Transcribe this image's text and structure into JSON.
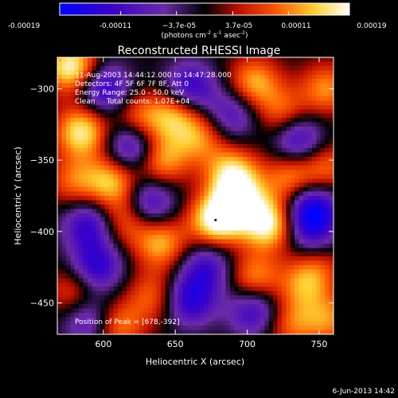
{
  "chart_data": {
    "type": "heatmap",
    "title": "Reconstructed RHESSI Image",
    "xlabel": "Heliocentric X (arcsec)",
    "ylabel": "Heliocentric Y (arcsec)",
    "xlim": [
      568,
      760
    ],
    "ylim": [
      -472,
      -278
    ],
    "xticks": [
      600,
      650,
      700,
      750
    ],
    "yticks": [
      -300,
      -350,
      -400,
      -450
    ],
    "colorbar": {
      "ticks": [
        "-0.00019",
        "-0.00011",
        "−3.7e-05",
        "3.7e-05",
        "0.00011",
        "0.00019"
      ],
      "tick_values": [
        -0.00019,
        -0.00011,
        -3.7e-05,
        3.7e-05,
        0.00011,
        0.00019
      ],
      "range": [
        -0.00019,
        0.00019
      ],
      "units_base": "(photons cm",
      "units_exp1": "-2",
      "units_mid": " s",
      "units_exp2": "-1",
      "units_mid2": " asec",
      "units_exp3": "-2",
      "units_end": ")",
      "colormap": [
        "#0000ff",
        "#3a00c8",
        "#6b2aa8",
        "#000000",
        "#c01000",
        "#ff5a00",
        "#ffd030",
        "#ffffff"
      ]
    },
    "annotations": {
      "line1": "11-Aug-2003 14:44:12.000 to 14:47:28.000",
      "line2": "Detectors: 4F 5F 6F 7F 8F, Att 0",
      "line3": "Energy Range: 25.0 - 50.0 keV",
      "line4": "Clean     Total counts: 1.07E+04",
      "peak": "Position of Peak = [678,-392]"
    },
    "peak": [
      678,
      -392
    ],
    "features": [
      {
        "x": 578,
        "y": -285,
        "amp": 1.0
      },
      {
        "x": 585,
        "y": -330,
        "amp": 0.9
      },
      {
        "x": 580,
        "y": -365,
        "amp": 0.5
      },
      {
        "x": 606,
        "y": -365,
        "amp": 0.75
      },
      {
        "x": 640,
        "y": -350,
        "amp": 0.7
      },
      {
        "x": 625,
        "y": -322,
        "amp": 0.6
      },
      {
        "x": 650,
        "y": -318,
        "amp": 0.7
      },
      {
        "x": 667,
        "y": -335,
        "amp": 0.55
      },
      {
        "x": 705,
        "y": -296,
        "amp": 0.7
      },
      {
        "x": 725,
        "y": -318,
        "amp": 0.55
      },
      {
        "x": 755,
        "y": -300,
        "amp": 0.6
      },
      {
        "x": 690,
        "y": -360,
        "amp": 0.85
      },
      {
        "x": 730,
        "y": -362,
        "amp": 0.6
      },
      {
        "x": 755,
        "y": -355,
        "amp": 0.5
      },
      {
        "x": 678,
        "y": -392,
        "amp": 1.0
      },
      {
        "x": 715,
        "y": -395,
        "amp": 0.95
      },
      {
        "x": 695,
        "y": -380,
        "amp": 0.8
      },
      {
        "x": 615,
        "y": -392,
        "amp": 0.55
      },
      {
        "x": 640,
        "y": -408,
        "amp": 0.7
      },
      {
        "x": 748,
        "y": -420,
        "amp": 0.5
      },
      {
        "x": 705,
        "y": -433,
        "amp": 0.65
      },
      {
        "x": 740,
        "y": -438,
        "amp": 0.55
      },
      {
        "x": 635,
        "y": -445,
        "amp": 0.5
      },
      {
        "x": 580,
        "y": -442,
        "amp": 0.5
      },
      {
        "x": 610,
        "y": -466,
        "amp": 0.6
      },
      {
        "x": 730,
        "y": -465,
        "amp": 0.5
      },
      {
        "x": 757,
        "y": -462,
        "amp": 0.55
      },
      {
        "x": 600,
        "y": -300,
        "amp": -0.75
      },
      {
        "x": 620,
        "y": -340,
        "amp": -0.85
      },
      {
        "x": 632,
        "y": -380,
        "amp": -0.7
      },
      {
        "x": 590,
        "y": -395,
        "amp": -0.7
      },
      {
        "x": 660,
        "y": -300,
        "amp": -0.75
      },
      {
        "x": 735,
        "y": -335,
        "amp": -0.75
      },
      {
        "x": 745,
        "y": -385,
        "amp": -1.0
      },
      {
        "x": 595,
        "y": -425,
        "amp": -0.75
      },
      {
        "x": 660,
        "y": -448,
        "amp": -0.75
      },
      {
        "x": 705,
        "y": -455,
        "amp": -0.7
      },
      {
        "x": 672,
        "y": -425,
        "amp": -0.6
      },
      {
        "x": 590,
        "y": -462,
        "amp": -0.6
      },
      {
        "x": 690,
        "y": -318,
        "amp": -0.55
      },
      {
        "x": 745,
        "y": -407,
        "amp": -0.55
      }
    ]
  },
  "footer": {
    "timestamp": "6-Jun-2013 14:42"
  }
}
